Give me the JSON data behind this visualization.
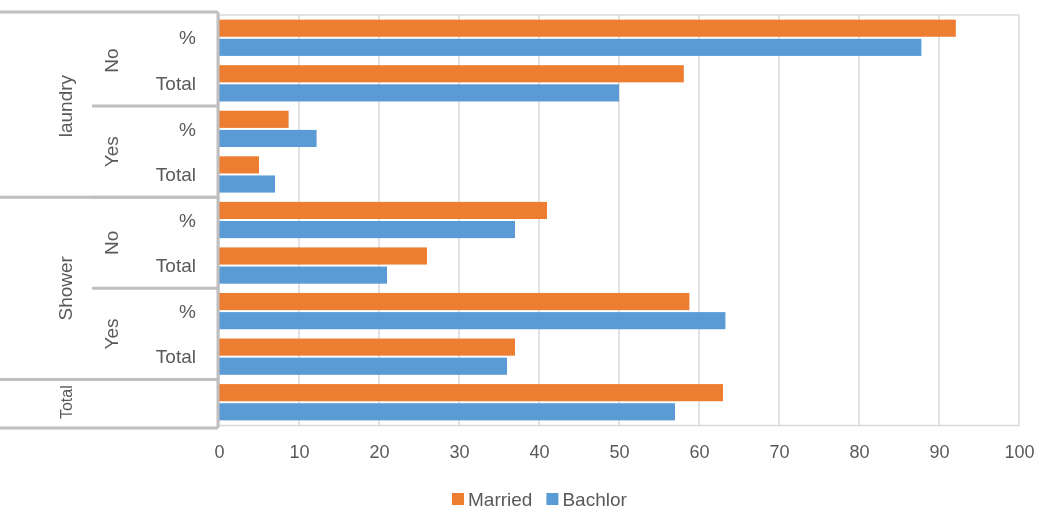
{
  "chart_data": {
    "type": "bar",
    "orientation": "horizontal",
    "categories": [
      "%",
      "Total",
      "%",
      "Total",
      "%",
      "Total",
      "%",
      "Total",
      null
    ],
    "annotations": [
      "laundry",
      "No",
      "Yes",
      "Shower",
      "No",
      "Yes",
      "Total"
    ],
    "series": [
      {
        "name": "Married",
        "color": "#ed7d31",
        "values": [
          92.1,
          58.1,
          8.7,
          5,
          41,
          26,
          58.8,
          37,
          63
        ]
      },
      {
        "name": "Bachlor",
        "color": "#5b9bd5",
        "values": [
          87.8,
          50,
          12.2,
          7,
          37,
          21,
          63.3,
          36,
          57
        ]
      }
    ],
    "xlim": [
      0,
      100
    ],
    "xticks": [
      0,
      10,
      20,
      30,
      40,
      50,
      60,
      70,
      80,
      90,
      100
    ],
    "grid": "x",
    "legend": "bottom"
  }
}
